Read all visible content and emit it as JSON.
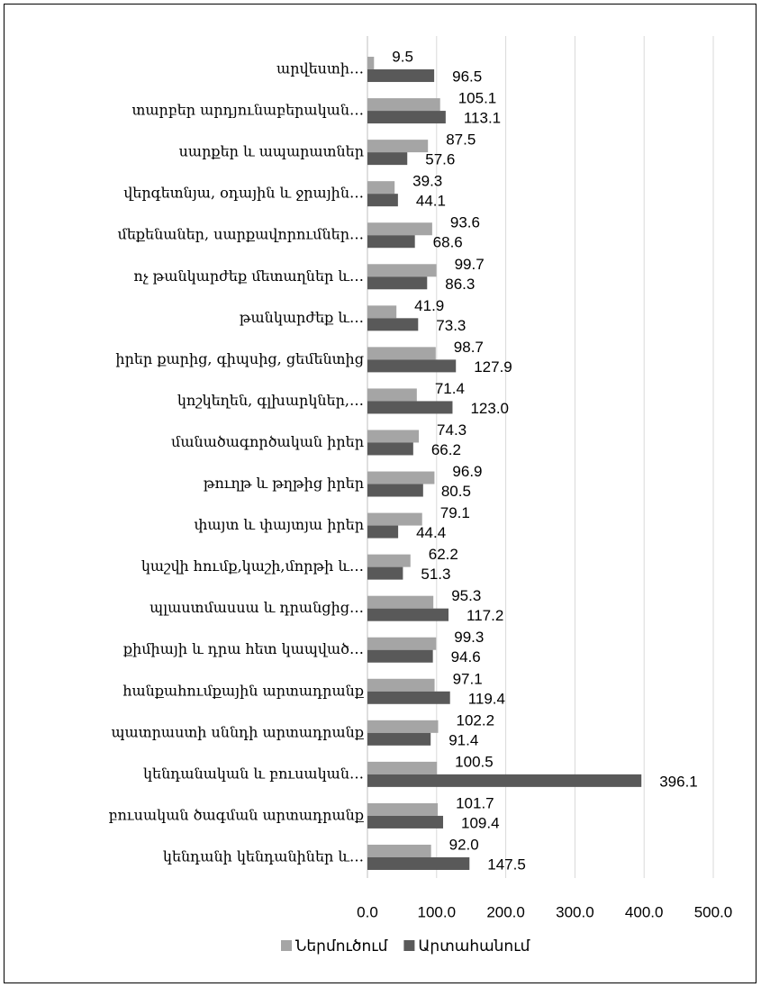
{
  "chart_data": {
    "type": "barh",
    "categories": [
      "արվեստի…",
      "տարբեր արդյունաբերական…",
      "սարքեր և ապարատներ",
      "վերգետնյա, օդային և ջրային…",
      "մեքենաներ, սարքավորումներ…",
      "ոչ թանկարժեք մետաղներ և…",
      "թանկարժեք և…",
      "իրեր քարից, գիպսից, ցեմենտից",
      "կոշկեղեն, գլխարկներ,…",
      "մանածագործական իրեր",
      "թուղթ և թղթից իրեր",
      "փայտ և փայտյա իրեր",
      "կաշվի հումք,կաշի,մորթի և…",
      "պլաստմասսա և դրանցից…",
      "քիմիայի և դրա հետ կապված…",
      "հանքահումքային արտադրանք",
      "պատրաստի սննդի արտադրանք",
      "կենդանական և բուսական…",
      "բուսական ծագման արտադրանք",
      "կենդանի կենդանիներ և…"
    ],
    "series": [
      {
        "name": "Ներմուծում",
        "color": "#a5a5a5",
        "values": [
          9.5,
          105.1,
          87.5,
          39.3,
          93.6,
          99.7,
          41.9,
          98.7,
          71.4,
          74.3,
          96.9,
          79.1,
          62.2,
          95.3,
          99.3,
          97.1,
          102.2,
          100.5,
          101.7,
          92.0
        ],
        "value_labels": [
          "9.5",
          "105.1",
          "87.5",
          "39.3",
          "93.6",
          "99.7",
          "41.9",
          "98.7",
          "71.4",
          "74.3",
          "96.9",
          "79.1",
          "62.2",
          "95.3",
          "99.3",
          "97.1",
          "102.2",
          "100.5",
          "101.7",
          "92.0"
        ]
      },
      {
        "name": "Արտահանում",
        "color": "#595959",
        "values": [
          96.5,
          113.1,
          57.6,
          44.1,
          68.6,
          86.3,
          73.3,
          127.9,
          123.0,
          66.2,
          80.5,
          44.4,
          51.3,
          117.2,
          94.6,
          119.4,
          91.4,
          396.1,
          109.4,
          147.5
        ],
        "value_labels": [
          "96.5",
          "113.1",
          "57.6",
          "44.1",
          "68.6",
          "86.3",
          "73.3",
          "127.9",
          "123.0",
          "66.2",
          "80.5",
          "44.4",
          "51.3",
          "117.2",
          "94.6",
          "119.4",
          "91.4",
          "396.1",
          "109.4",
          "147.5"
        ]
      }
    ],
    "xlim": [
      0,
      500
    ],
    "xticks": [
      {
        "value": 0,
        "label": "0.0"
      },
      {
        "value": 100,
        "label": "100.0"
      },
      {
        "value": 200,
        "label": "200.0"
      },
      {
        "value": 300,
        "label": "300.0"
      },
      {
        "value": 400,
        "label": "400.0"
      },
      {
        "value": 500,
        "label": "500.0"
      }
    ],
    "grid": true,
    "legend": "bottom"
  }
}
